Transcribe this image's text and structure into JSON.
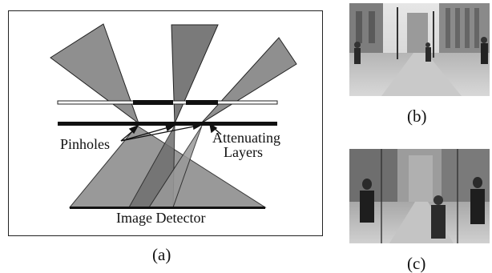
{
  "figure_a": {
    "labels": {
      "pinholes": "Pinholes",
      "attenuating_line1": "Attenuating",
      "attenuating_line2": "Layers",
      "detector": "Image Detector"
    },
    "caption": "(a)"
  },
  "figure_b": {
    "caption": "(b)"
  },
  "figure_c": {
    "caption": "(c)"
  },
  "colors": {
    "cone_fill": "#8f8f8f",
    "cone_dark": "#7a7a7a",
    "frame": "#222222",
    "layer": "#111111"
  }
}
